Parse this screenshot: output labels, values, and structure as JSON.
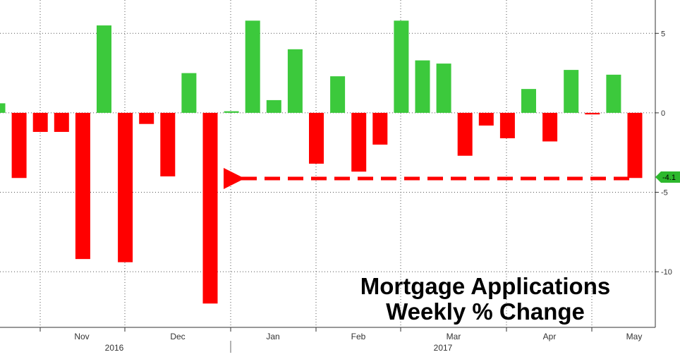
{
  "chart_data": {
    "type": "bar",
    "title_lines": [
      "Mortgage Applications",
      "Weekly % Change"
    ],
    "x_month_labels": [
      "Nov",
      "Dec",
      "Jan",
      "Feb",
      "Mar",
      "Apr",
      "May"
    ],
    "x_year_labels": [
      "2016",
      "2017"
    ],
    "y_ticks": [
      5,
      0,
      -5,
      -10
    ],
    "y_tick_labels": [
      "5",
      "0",
      "-5",
      "-10"
    ],
    "ylim": [
      -13.5,
      7.1
    ],
    "grid": true,
    "last_value_label": "-4.1",
    "values": [
      0.6,
      -4.1,
      -1.2,
      -1.2,
      -9.2,
      5.5,
      -9.4,
      -0.7,
      -4.0,
      2.5,
      -12.0,
      0.1,
      5.8,
      0.8,
      4.0,
      -3.2,
      2.3,
      -3.7,
      -2.0,
      5.8,
      3.3,
      3.1,
      -2.7,
      -0.8,
      -1.6,
      1.5,
      -1.8,
      2.7,
      -0.1,
      2.4,
      -4.1
    ],
    "positive_color": "#3cc93c",
    "negative_color": "#ff0000",
    "annotation": "dashed arrow from the latest bar pointing left to the late-December bar"
  }
}
